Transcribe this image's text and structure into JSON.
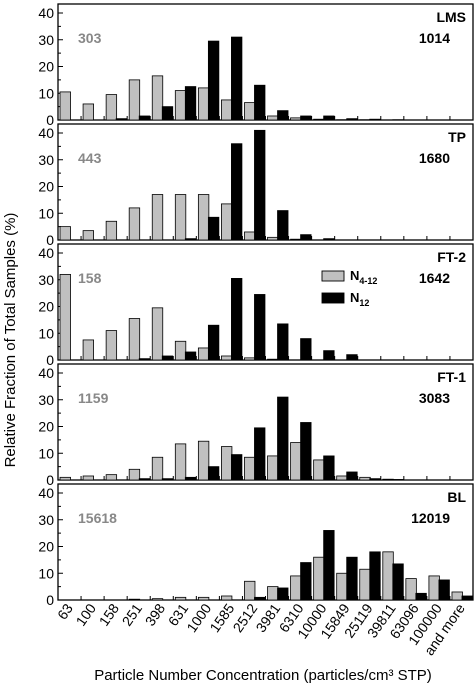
{
  "figure": {
    "ylabel": "Relative Fraction of Total Samples (%)",
    "xlabel": "Particle Number Concentration (particles/cm³ STP)",
    "legend": [
      {
        "key": "n412",
        "main": "N",
        "sub": "4-12",
        "color": "#c0c0c0"
      },
      {
        "key": "n12",
        "main": "N",
        "sub": "12",
        "color": "#000000"
      }
    ]
  },
  "chart_data": {
    "type": "bar",
    "categories": [
      "63",
      "100",
      "158",
      "251",
      "398",
      "631",
      "1000",
      "1585",
      "2512",
      "3981",
      "6310",
      "10000",
      "15849",
      "25119",
      "39811",
      "63096",
      "100000",
      "and more"
    ],
    "ylim": [
      0,
      40
    ],
    "yticks": [
      0,
      10,
      20,
      30,
      40
    ],
    "grid": false,
    "legend_panel": "FT-2",
    "panels": [
      {
        "label": "LMS",
        "count_n412": "303",
        "count_n12": "1014",
        "series": [
          {
            "name": "N4-12",
            "values": [
              10.5,
              6,
              9.5,
              15,
              16.5,
              11,
              12,
              7.5,
              6.5,
              1.5,
              0.8,
              0.3,
              0.1,
              0.1,
              0,
              0,
              0,
              0
            ]
          },
          {
            "name": "N12",
            "values": [
              0,
              0,
              0.5,
              1.5,
              5,
              12.5,
              29.5,
              31,
              13,
              3.5,
              1.5,
              1.5,
              0.5,
              0.3,
              0.1,
              0,
              0,
              0
            ]
          }
        ]
      },
      {
        "label": "TP",
        "count_n412": "443",
        "count_n12": "1680",
        "series": [
          {
            "name": "N4-12",
            "values": [
              5,
              3.5,
              7,
              12,
              17,
              17,
              17,
              13.5,
              3,
              1,
              0.3,
              0,
              0,
              0,
              0,
              0,
              0,
              0
            ]
          },
          {
            "name": "N12",
            "values": [
              0,
              0,
              0,
              0,
              0,
              0.5,
              8.5,
              36,
              41,
              11,
              2,
              0.5,
              0,
              0,
              0,
              0,
              0,
              0
            ]
          }
        ]
      },
      {
        "label": "FT-2",
        "count_n412": "158",
        "count_n12": "1642",
        "series": [
          {
            "name": "N4-12",
            "values": [
              32,
              7.5,
              11,
              15.5,
              19.5,
              7,
              4.5,
              1.5,
              0.8,
              0.3,
              0,
              0,
              0,
              0,
              0,
              0,
              0,
              0
            ]
          },
          {
            "name": "N12",
            "values": [
              0,
              0,
              0,
              0.5,
              1.5,
              3,
              13,
              30.5,
              24.5,
              13.5,
              8,
              3.5,
              2,
              0,
              0,
              0,
              0,
              0
            ]
          }
        ]
      },
      {
        "label": "FT-1",
        "count_n412": "1159",
        "count_n12": "3083",
        "series": [
          {
            "name": "N4-12",
            "values": [
              1,
              1.5,
              2,
              4,
              8.5,
              13.5,
              14.5,
              12.5,
              8.5,
              9,
              14,
              7.5,
              1.5,
              1,
              0.3,
              0,
              0,
              0
            ]
          },
          {
            "name": "N12",
            "values": [
              0,
              0,
              0,
              0.5,
              0.5,
              1,
              5,
              9.5,
              19.5,
              31,
              21.5,
              9,
              3,
              0.5,
              0.2,
              0,
              0,
              0
            ]
          }
        ]
      },
      {
        "label": "BL",
        "count_n412": "15618",
        "count_n12": "12019",
        "series": [
          {
            "name": "N4-12",
            "values": [
              0,
              0,
              0,
              0.3,
              0.5,
              1,
              1,
              1.5,
              7,
              5,
              9,
              16,
              10,
              11.5,
              18,
              8,
              9,
              3
            ]
          },
          {
            "name": "N12",
            "values": [
              0,
              0,
              0,
              0,
              0,
              0,
              0,
              0,
              1,
              4.5,
              14,
              26,
              16,
              18,
              13.5,
              2.5,
              7.5,
              1.5
            ]
          }
        ]
      }
    ]
  }
}
